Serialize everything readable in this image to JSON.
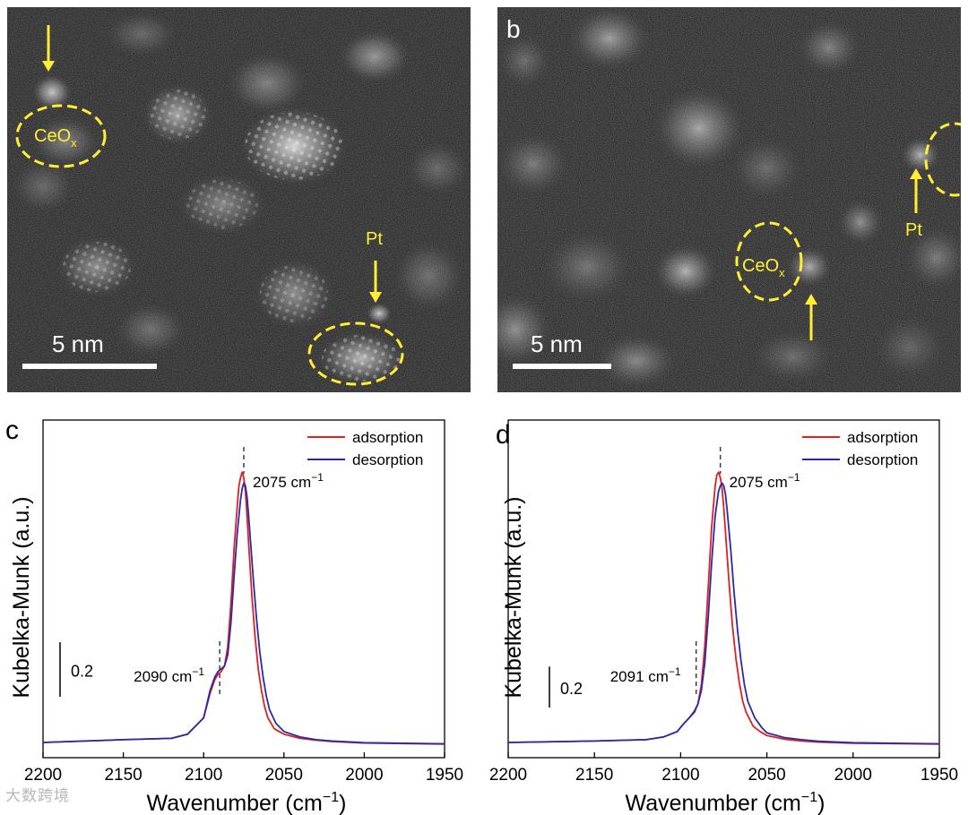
{
  "panels": {
    "a": {
      "scale_bar_label": "5 nm",
      "annotations": {
        "ceo": "CeO",
        "ceo_sub": "x",
        "pt": "Pt"
      }
    },
    "b": {
      "letter": "b",
      "scale_bar_label": "5 nm",
      "annotations": {
        "ceo": "CeO",
        "ceo_sub": "x",
        "pt": "Pt"
      }
    }
  },
  "colors": {
    "annotation_yellow": "#ffee33",
    "adsorption": "#e02020",
    "desorption": "#2a2aa8",
    "stem_bg": "#151515"
  },
  "chart_data": [
    {
      "panel": "c",
      "type": "line",
      "letter": "c",
      "xlabel": "Wavenumber (cm",
      "xlabel_sup": "−1",
      "xlabel_close": ")",
      "ylabel": "Kubelka-Munk (a.u.)",
      "xlim": [
        2200,
        1950
      ],
      "x_ticks": [
        2200,
        2150,
        2100,
        2050,
        2000,
        1950
      ],
      "ylim": [
        0,
        1.04
      ],
      "scale_bar": {
        "label": "0.2",
        "length": 0.2
      },
      "legend": [
        "adsorption",
        "desorption"
      ],
      "legend_position": "top-right",
      "annotations": [
        {
          "text": "2075 cm",
          "sup": "−1",
          "x": 2075
        },
        {
          "text": "2090 cm",
          "sup": "−1",
          "x": 2090
        }
      ],
      "series": [
        {
          "name": "adsorption",
          "color": "#e02020",
          "x": [
            2200,
            2150,
            2120,
            2110,
            2100,
            2096,
            2093,
            2091,
            2089,
            2087,
            2085,
            2083,
            2081,
            2079,
            2078,
            2077,
            2076,
            2075,
            2074,
            2073,
            2072,
            2070,
            2068,
            2066,
            2064,
            2062,
            2060,
            2056,
            2050,
            2040,
            2030,
            2020,
            2000,
            1950
          ],
          "y": [
            0.01,
            0.02,
            0.025,
            0.04,
            0.1,
            0.19,
            0.24,
            0.26,
            0.27,
            0.29,
            0.36,
            0.52,
            0.72,
            0.88,
            0.95,
            0.98,
            1.0,
            0.98,
            0.93,
            0.84,
            0.74,
            0.55,
            0.4,
            0.28,
            0.2,
            0.14,
            0.1,
            0.06,
            0.04,
            0.025,
            0.018,
            0.013,
            0.008,
            0.004
          ]
        },
        {
          "name": "desorption",
          "color": "#2a2aa8",
          "x": [
            2200,
            2150,
            2120,
            2110,
            2100,
            2096,
            2093,
            2091,
            2089,
            2087,
            2085,
            2083,
            2081,
            2079,
            2077,
            2076,
            2075,
            2074,
            2073,
            2072,
            2071,
            2069,
            2067,
            2065,
            2063,
            2061,
            2059,
            2055,
            2050,
            2040,
            2030,
            2020,
            2000,
            1950
          ],
          "y": [
            0.01,
            0.02,
            0.025,
            0.04,
            0.1,
            0.2,
            0.25,
            0.27,
            0.28,
            0.29,
            0.33,
            0.45,
            0.62,
            0.78,
            0.9,
            0.94,
            0.96,
            0.95,
            0.91,
            0.84,
            0.76,
            0.6,
            0.46,
            0.34,
            0.25,
            0.18,
            0.13,
            0.08,
            0.05,
            0.03,
            0.02,
            0.015,
            0.009,
            0.005
          ]
        }
      ]
    },
    {
      "panel": "d",
      "type": "line",
      "letter": "d",
      "xlabel": "Wavenumber (cm",
      "xlabel_sup": "−1",
      "xlabel_close": ")",
      "ylabel": "Kubelka-Munk (a.u.)",
      "xlim": [
        2200,
        1950
      ],
      "x_ticks": [
        2200,
        2150,
        2100,
        2050,
        2000,
        1950
      ],
      "ylim": [
        0,
        1.04
      ],
      "scale_bar": {
        "label": "0.2",
        "length": 0.15
      },
      "legend": [
        "adsorption",
        "desorption"
      ],
      "legend_position": "top-right",
      "annotations": [
        {
          "text": "2075 cm",
          "sup": "−1",
          "x": 2077
        },
        {
          "text": "2091 cm",
          "sup": "−1",
          "x": 2091
        }
      ],
      "series": [
        {
          "name": "adsorption",
          "color": "#e02020",
          "x": [
            2200,
            2150,
            2120,
            2110,
            2102,
            2098,
            2095,
            2092,
            2090,
            2088,
            2086,
            2084,
            2082,
            2080,
            2079,
            2078,
            2077,
            2076,
            2075,
            2074,
            2072,
            2070,
            2068,
            2066,
            2064,
            2062,
            2058,
            2054,
            2050,
            2040,
            2030,
            2020,
            2000,
            1950
          ],
          "y": [
            0.01,
            0.015,
            0.02,
            0.03,
            0.05,
            0.08,
            0.1,
            0.12,
            0.15,
            0.22,
            0.36,
            0.58,
            0.8,
            0.95,
            0.99,
            1.0,
            0.98,
            0.94,
            0.87,
            0.78,
            0.6,
            0.44,
            0.32,
            0.23,
            0.16,
            0.12,
            0.07,
            0.05,
            0.035,
            0.022,
            0.015,
            0.011,
            0.007,
            0.004
          ]
        },
        {
          "name": "desorption",
          "color": "#2a2aa8",
          "x": [
            2200,
            2150,
            2120,
            2110,
            2102,
            2098,
            2095,
            2092,
            2090,
            2088,
            2086,
            2084,
            2082,
            2080,
            2078,
            2077,
            2076,
            2075,
            2074,
            2073,
            2071,
            2069,
            2067,
            2065,
            2063,
            2061,
            2057,
            2053,
            2050,
            2040,
            2030,
            2020,
            2000,
            1950
          ],
          "y": [
            0.01,
            0.015,
            0.02,
            0.03,
            0.05,
            0.08,
            0.1,
            0.125,
            0.15,
            0.2,
            0.3,
            0.47,
            0.67,
            0.84,
            0.93,
            0.95,
            0.96,
            0.95,
            0.92,
            0.86,
            0.72,
            0.56,
            0.42,
            0.31,
            0.22,
            0.16,
            0.1,
            0.065,
            0.045,
            0.028,
            0.02,
            0.014,
            0.009,
            0.005
          ]
        }
      ]
    }
  ],
  "watermark": "大数跨境"
}
